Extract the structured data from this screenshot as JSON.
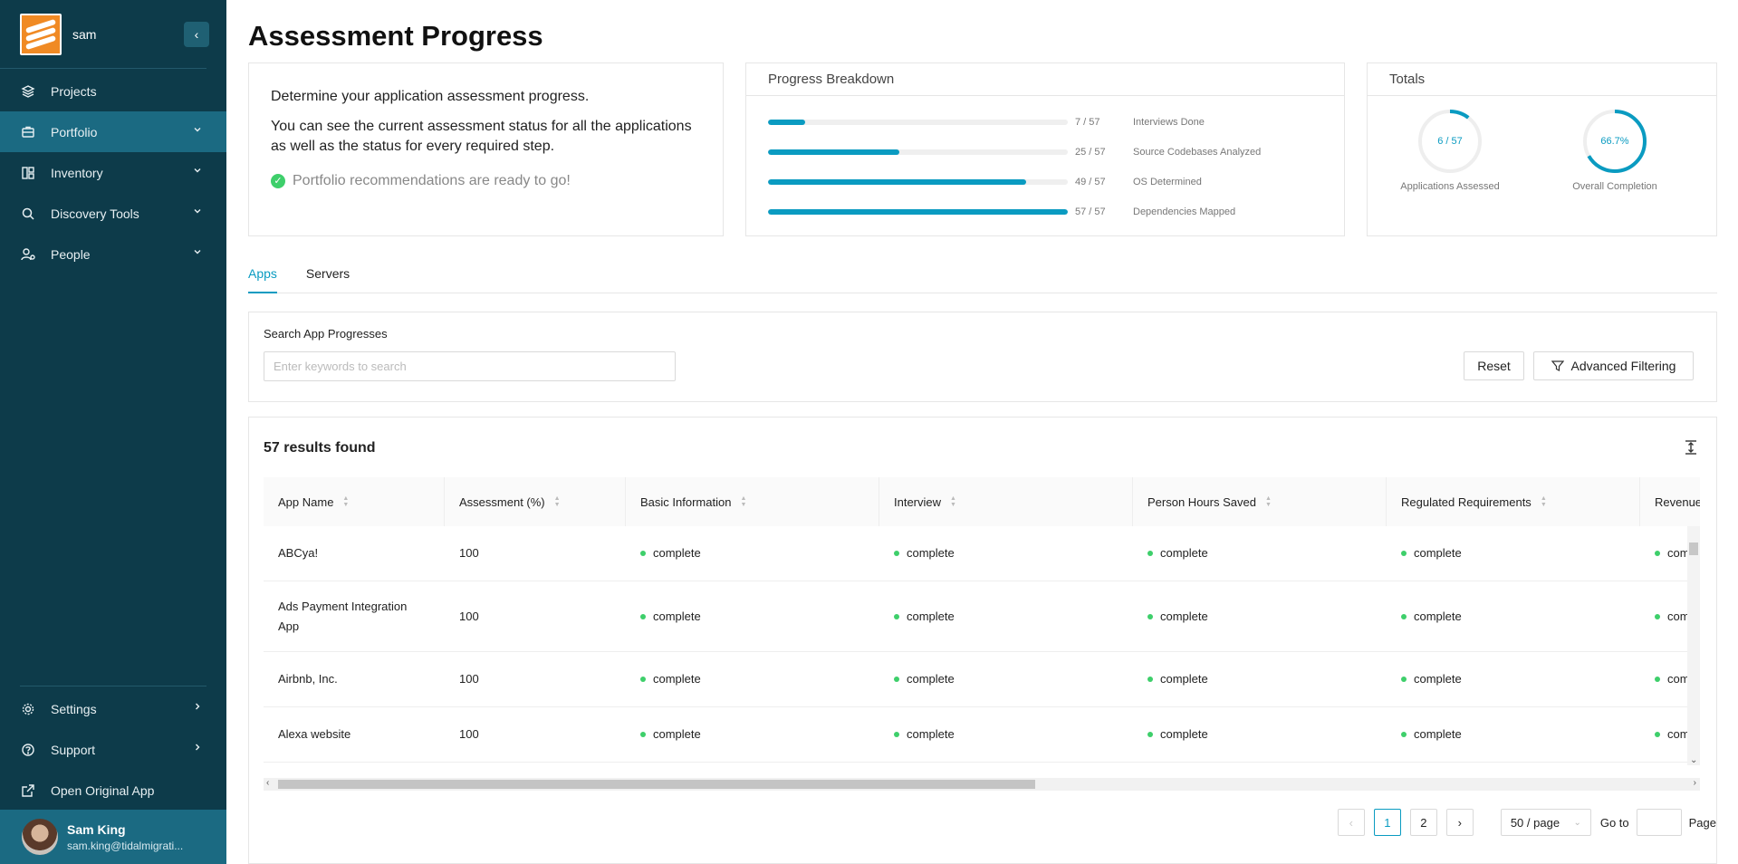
{
  "sidebar": {
    "username": "sam",
    "nav": [
      {
        "label": "Projects",
        "icon": "layers-icon",
        "chevron": ""
      },
      {
        "label": "Portfolio",
        "icon": "briefcase-icon",
        "chevron": "down"
      },
      {
        "label": "Inventory",
        "icon": "inventory-icon",
        "chevron": "down"
      },
      {
        "label": "Discovery Tools",
        "icon": "search-icon",
        "chevron": "down"
      },
      {
        "label": "People",
        "icon": "user-gear-icon",
        "chevron": "down"
      }
    ],
    "bottom_nav": [
      {
        "label": "Settings",
        "icon": "gear-icon"
      },
      {
        "label": "Support",
        "icon": "question-icon"
      },
      {
        "label": "Open Original App",
        "icon": "external-link-icon"
      }
    ],
    "profile": {
      "name": "Sam King",
      "email": "sam.king@tidalmigrati..."
    }
  },
  "page": {
    "title": "Assessment Progress"
  },
  "intro": {
    "line1": "Determine your application assessment progress.",
    "line2": "You can see the current assessment status for all the applications as well as the status for every required step.",
    "ready": "Portfolio recommendations are ready to go!"
  },
  "breakdown": {
    "title": "Progress Breakdown",
    "rows": [
      {
        "label": "Interviews Done",
        "count": "7 / 57",
        "fraction": 0.123
      },
      {
        "label": "Source Codebases Analyzed",
        "count": "25 / 57",
        "fraction": 0.439
      },
      {
        "label": "OS Determined",
        "count": "49 / 57",
        "fraction": 0.86
      },
      {
        "label": "Dependencies Mapped",
        "count": "57 / 57",
        "fraction": 1.0
      }
    ]
  },
  "totals": {
    "title": "Totals",
    "rings": [
      {
        "value": "6 / 57",
        "label": "Applications Assessed",
        "fraction": 0.105
      },
      {
        "value": "66.7%",
        "label": "Overall Completion",
        "fraction": 0.667
      }
    ]
  },
  "tabs": [
    "Apps",
    "Servers"
  ],
  "search": {
    "label": "Search App Progresses",
    "placeholder": "Enter keywords to search",
    "value": "",
    "reset": "Reset",
    "advanced": "Advanced Filtering"
  },
  "results": {
    "title": "57 results found",
    "columns": [
      "App Name",
      "Assessment (%)",
      "Basic Information",
      "Interview",
      "Person Hours Saved",
      "Regulated Requirements",
      "Revenue"
    ],
    "rows": [
      {
        "name": "ABCya!",
        "assessment": "100",
        "statuses": [
          "complete",
          "complete",
          "complete",
          "complete",
          "com"
        ]
      },
      {
        "name": "Ads Payment Integration App",
        "assessment": "100",
        "statuses": [
          "complete",
          "complete",
          "complete",
          "complete",
          "com"
        ]
      },
      {
        "name": "Airbnb, Inc.",
        "assessment": "100",
        "statuses": [
          "complete",
          "complete",
          "complete",
          "complete",
          "com"
        ]
      },
      {
        "name": "Alexa website",
        "assessment": "100",
        "statuses": [
          "complete",
          "complete",
          "complete",
          "complete",
          "com"
        ]
      }
    ]
  },
  "pagination": {
    "pages": [
      "1",
      "2"
    ],
    "page_size": "50 / page",
    "goto_label": "Go to",
    "page_label": "Page"
  },
  "colors": {
    "sidebar": "#0d3b4a",
    "sidebar_active": "#1b6a82",
    "accent": "#0a9bc1",
    "success": "#3ecf6b"
  }
}
